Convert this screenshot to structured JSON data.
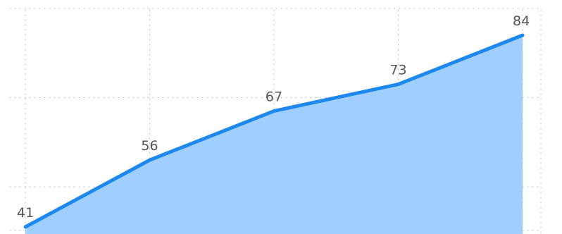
{
  "chart_data": {
    "type": "area",
    "x": [
      1,
      2,
      3,
      4,
      5
    ],
    "values": [
      41,
      56,
      67,
      73,
      84
    ],
    "data_labels": [
      "41",
      "56",
      "67",
      "73",
      "84"
    ],
    "title": "",
    "xlabel": "",
    "ylabel": "",
    "xlim": [
      1,
      5
    ],
    "ylim": [
      40,
      90
    ],
    "grid": true,
    "show_axes": false,
    "colors": {
      "line": "#1e88ee",
      "fill": "#9ecfff",
      "grid": "#b8b8b8",
      "label": "#555555"
    }
  }
}
